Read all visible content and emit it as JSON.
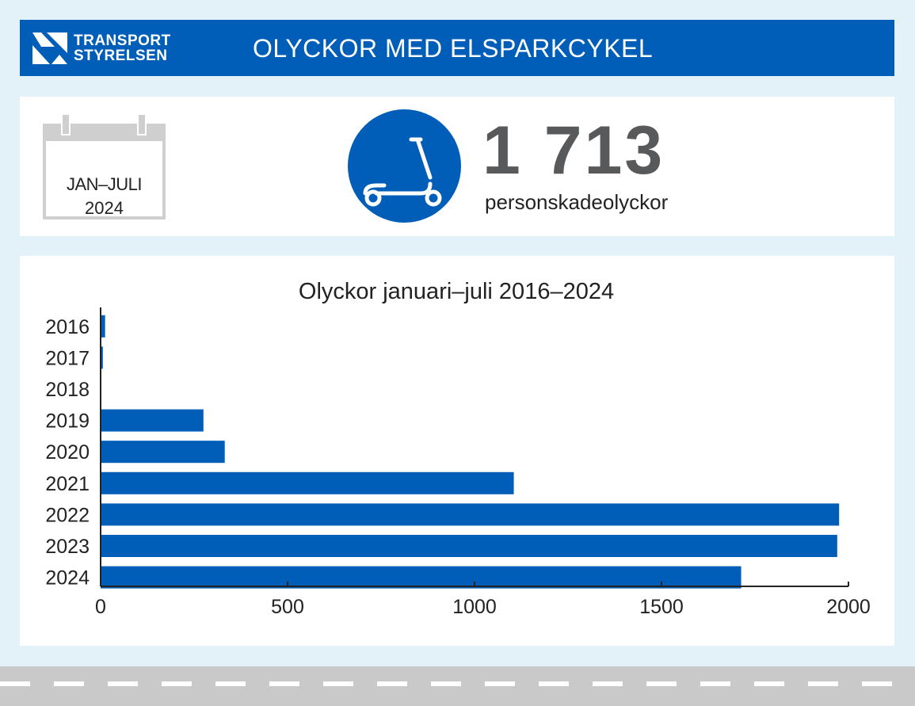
{
  "header": {
    "logo": {
      "line1": "TRANSPORT",
      "line2": "STYRELSEN"
    },
    "title": "OLYCKOR MED ELSPARKCYKEL",
    "color": "#005eb8"
  },
  "kpi": {
    "period_line1": "JAN–JULI",
    "period_line2": "2024",
    "value": "1 713",
    "label": "personskadeolyckor",
    "icon": "kick-scooter-icon",
    "calendar_icon": "calendar-icon"
  },
  "chart_data": {
    "type": "bar",
    "orientation": "horizontal",
    "title": "Olyckor januari–juli 2016–2024",
    "categories": [
      "2016",
      "2017",
      "2018",
      "2019",
      "2020",
      "2021",
      "2022",
      "2023",
      "2024"
    ],
    "values": [
      12,
      6,
      2,
      275,
      332,
      1105,
      1975,
      1970,
      1713
    ],
    "xlim": [
      0,
      2000
    ],
    "xticks": [
      0,
      500,
      1000,
      1500,
      2000
    ],
    "color": "#005eb8",
    "grid": false
  }
}
